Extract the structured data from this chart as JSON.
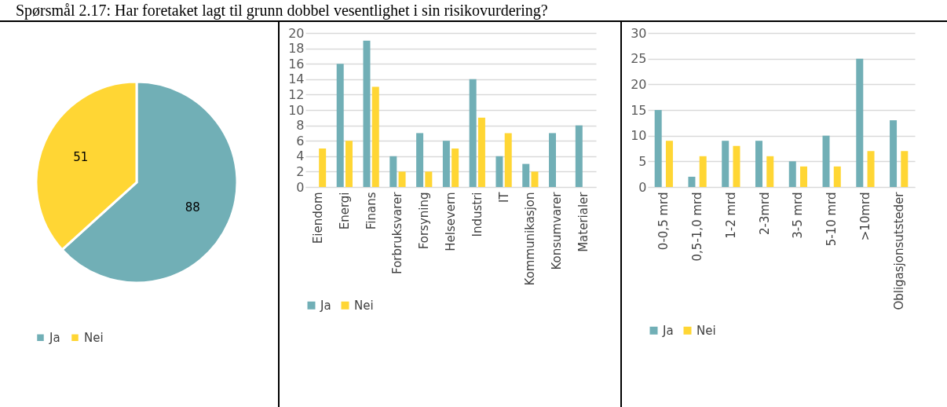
{
  "chart_data": [
    {
      "type": "pie",
      "title": "Spørsmål 2.17: Har foretaket lagt til grunn dobbel vesentlighet i sin risikovurdering?",
      "categories": [
        "Ja",
        "Nei"
      ],
      "values": [
        88,
        51
      ],
      "colors": [
        "#71afb6",
        "#ffd634"
      ],
      "data_labels": true,
      "legend": "bottom"
    },
    {
      "type": "bar",
      "categories": [
        "Eiendom",
        "Energi",
        "Finans",
        "Forbruksvarer",
        "Forsyning",
        "Helsevern",
        "Industri",
        "IT",
        "Kommunikasjon",
        "Konsumvarer",
        "Materialer"
      ],
      "series": [
        {
          "name": "Ja",
          "color": "#71afb6",
          "values": [
            0,
            16,
            19,
            4,
            7,
            6,
            14,
            4,
            3,
            7,
            8
          ]
        },
        {
          "name": "Nei",
          "color": "#ffd634",
          "values": [
            5,
            6,
            13,
            2,
            2,
            5,
            9,
            7,
            2,
            0,
            0
          ]
        }
      ],
      "ylim": [
        0,
        20
      ],
      "yticks": [
        0,
        2,
        4,
        6,
        8,
        10,
        12,
        14,
        16,
        18,
        20
      ],
      "grid": "y",
      "legend": "bottom"
    },
    {
      "type": "bar",
      "categories": [
        "0-0,5 mrd",
        "0,5-1,0 mrd",
        "1-2 mrd",
        "2-3mrd",
        "3-5 mrd",
        "5-10 mrd",
        ">10mrd",
        "Obligasjonsutsteder"
      ],
      "series": [
        {
          "name": "Ja",
          "color": "#71afb6",
          "values": [
            15,
            2,
            9,
            9,
            5,
            10,
            25,
            13
          ]
        },
        {
          "name": "Nei",
          "color": "#ffd634",
          "values": [
            9,
            6,
            8,
            6,
            4,
            4,
            7,
            7
          ]
        }
      ],
      "ylim": [
        0,
        30
      ],
      "yticks": [
        0,
        5,
        10,
        15,
        20,
        25,
        30
      ],
      "grid": "y",
      "legend": "bottom"
    }
  ]
}
